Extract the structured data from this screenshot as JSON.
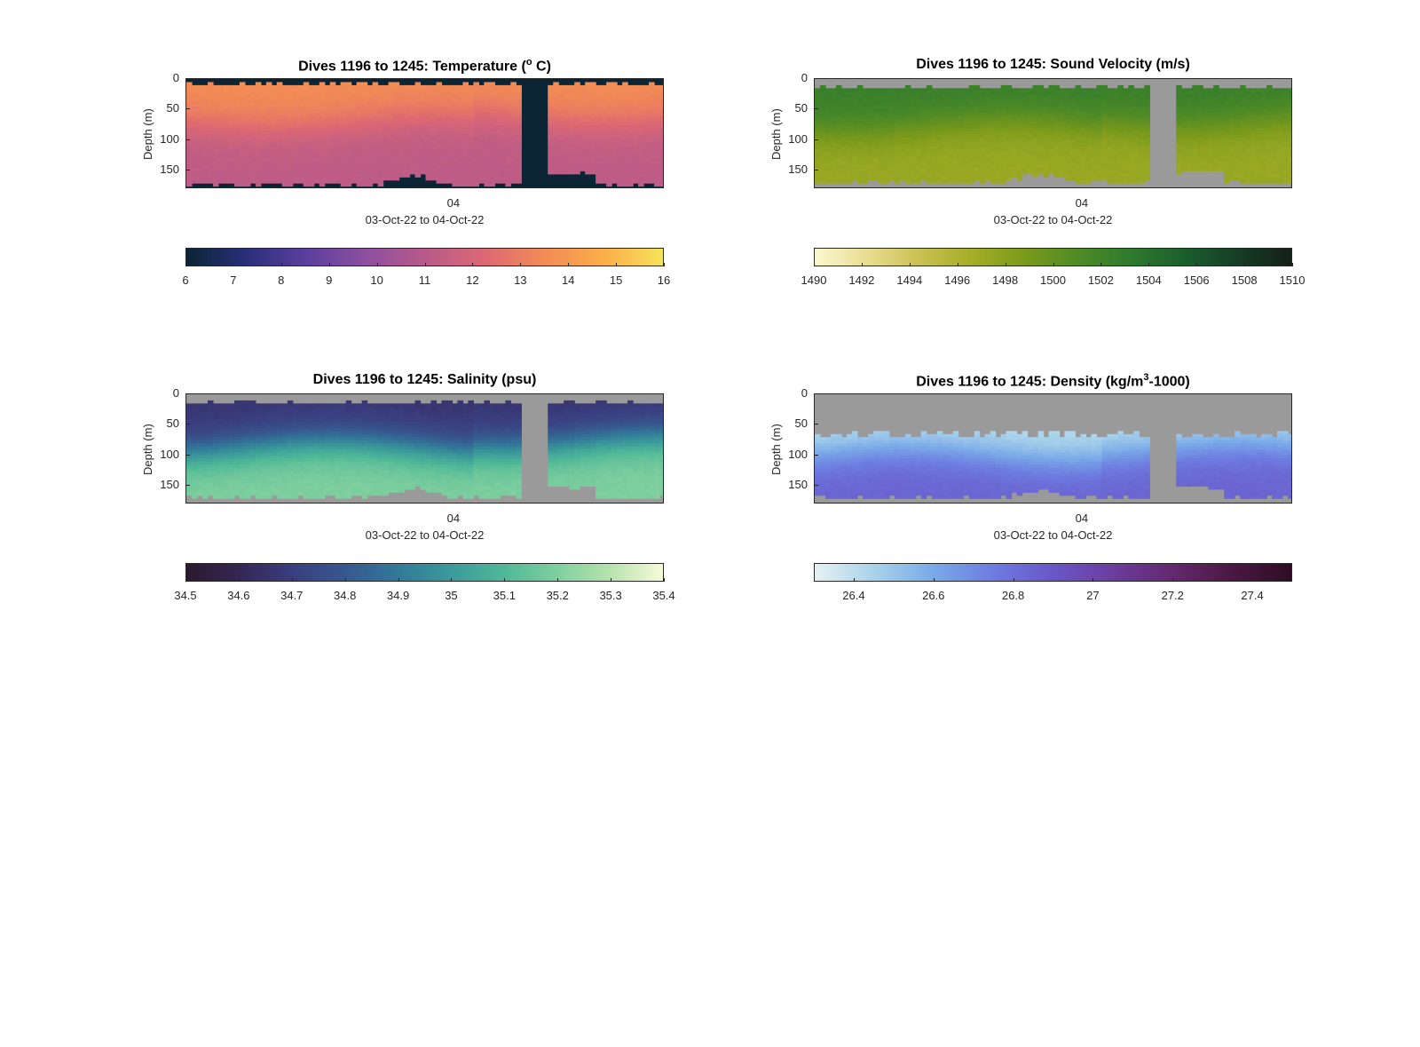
{
  "chart_data": [
    {
      "type": "heatmap",
      "title_main": "Dives 1196 to 1245: Temperature (",
      "title_sup": "o",
      "title_tail": " C)",
      "ylabel": "Depth (m)",
      "yticks": [
        "0",
        "50",
        "100",
        "150"
      ],
      "ylim": [
        0,
        180
      ],
      "xticks": [
        "04"
      ],
      "xlabel": "03-Oct-22 to 04-Oct-22",
      "gap_color": "#0b2535",
      "colormap": [
        "#0b2535",
        "#2a2f7a",
        "#5b3f9e",
        "#8c4f9f",
        "#b85a8a",
        "#dc6873",
        "#f28a55",
        "#fbae4a",
        "#f6e25a"
      ],
      "cbar_range": [
        6,
        16
      ],
      "cbar_ticks": [
        "6",
        "7",
        "8",
        "9",
        "10",
        "11",
        "12",
        "13",
        "14",
        "15",
        "16"
      ],
      "surface_value": 13.6,
      "bottom_value": 11.2,
      "thermocline_depth": 70,
      "gap_start": 0.7,
      "gap_end": 0.76,
      "surface_data_depth": 8,
      "bottom_depth": 175
    },
    {
      "type": "heatmap",
      "title_main": "Dives 1196 to 1245: Sound Velocity (m/s)",
      "title_sup": "",
      "title_tail": "",
      "ylabel": "Depth (m)",
      "yticks": [
        "0",
        "50",
        "100",
        "150"
      ],
      "ylim": [
        0,
        180
      ],
      "xticks": [
        "04"
      ],
      "xlabel": "03-Oct-22 to 04-Oct-22",
      "gap_color": "#9a9a9a",
      "colormap": [
        "#fcf8d0",
        "#e8dc90",
        "#c9c050",
        "#a3ad26",
        "#79991b",
        "#4e8a26",
        "#2d7a2e",
        "#1b5e2e",
        "#173d25",
        "#151f18"
      ],
      "cbar_range": [
        1490,
        1510
      ],
      "cbar_ticks": [
        "1490",
        "1492",
        "1494",
        "1496",
        "1498",
        "1500",
        "1502",
        "1504",
        "1506",
        "1508",
        "1510"
      ],
      "surface_value": 1502.6,
      "bottom_value": 1497.2,
      "thermocline_depth": 75,
      "gap_start": 0.7,
      "gap_end": 0.76,
      "surface_data_depth": 14,
      "bottom_depth": 172
    },
    {
      "type": "heatmap",
      "title_main": "Dives 1196 to 1245: Salinity (psu)",
      "title_sup": "",
      "title_tail": "",
      "ylabel": "Depth (m)",
      "yticks": [
        "0",
        "50",
        "100",
        "150"
      ],
      "ylim": [
        0,
        180
      ],
      "xticks": [
        "04"
      ],
      "xlabel": "03-Oct-22 to 04-Oct-22",
      "gap_color": "#9a9a9a",
      "colormap": [
        "#2b1a2d",
        "#352654",
        "#3a3e80",
        "#36588f",
        "#327a98",
        "#3b9a9a",
        "#4fb897",
        "#7fcf9e",
        "#b7e2ad",
        "#f7fbd8"
      ],
      "cbar_range": [
        34.5,
        35.4
      ],
      "cbar_ticks": [
        "34.5",
        "34.6",
        "34.7",
        "34.8",
        "34.9",
        "35",
        "35.1",
        "35.2",
        "35.3",
        "35.4"
      ],
      "surface_value": 34.66,
      "bottom_value": 35.2,
      "thermocline_depth": 85,
      "gap_start": 0.7,
      "gap_end": 0.76,
      "surface_data_depth": 14,
      "bottom_depth": 172
    },
    {
      "type": "heatmap",
      "title_main": "Dives 1196 to 1245: Density (kg/m",
      "title_sup": "3",
      "title_tail": "-1000)",
      "ylabel": "Depth (m)",
      "yticks": [
        "0",
        "50",
        "100",
        "150"
      ],
      "ylim": [
        0,
        180
      ],
      "xticks": [
        "04"
      ],
      "xlabel": "03-Oct-22 to 04-Oct-22",
      "gap_color": "#9a9a9a",
      "colormap": [
        "#e6f1f2",
        "#a8d2ea",
        "#79a9e8",
        "#6d7ce0",
        "#6a57c8",
        "#6b3d9e",
        "#64296f",
        "#4a1842",
        "#2e0d24"
      ],
      "cbar_range": [
        26.3,
        27.5
      ],
      "cbar_ticks": [
        "26.4",
        "26.6",
        "26.8",
        "27",
        "27.2",
        "27.4"
      ],
      "cbar_tick_values": [
        26.4,
        26.6,
        26.8,
        27.0,
        27.2,
        27.4
      ],
      "surface_value": 26.4,
      "bottom_value": 26.85,
      "thermocline_depth": 100,
      "gap_start": 0.7,
      "gap_end": 0.76,
      "surface_data_depth": 65,
      "bottom_depth": 172
    }
  ]
}
